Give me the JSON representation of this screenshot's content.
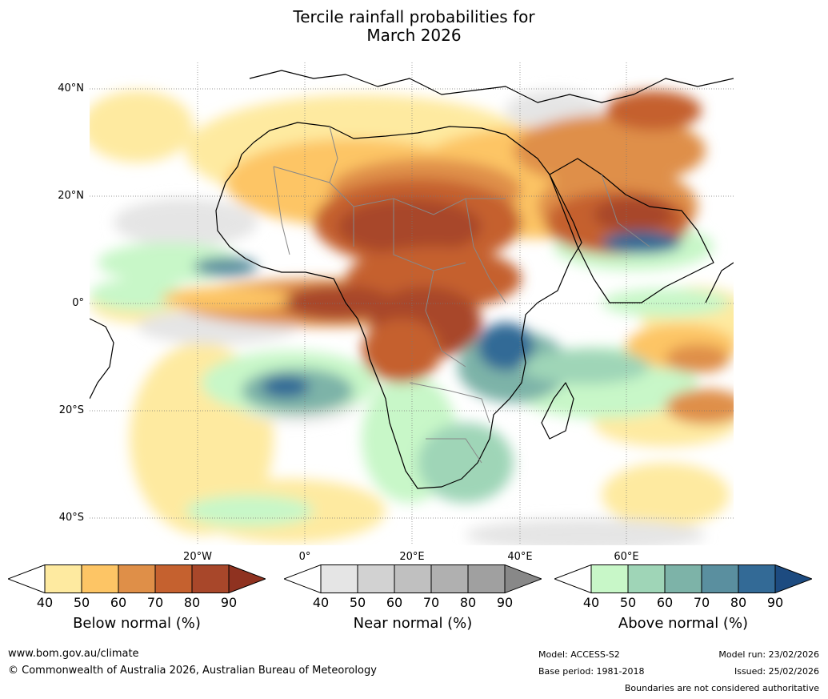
{
  "title_line1": "Tercile rainfall probabilities for",
  "title_line2": "March 2026",
  "lat_labels": [
    "40°N",
    "20°N",
    "0°",
    "20°S",
    "40°S"
  ],
  "lon_labels": [
    "20°W",
    "0°",
    "20°E",
    "40°E",
    "60°E"
  ],
  "colorbars": [
    {
      "label": "Below normal (%)",
      "ticks": [
        "40",
        "50",
        "60",
        "70",
        "80",
        "90"
      ],
      "colors": [
        "#ffffff",
        "#feeaa0",
        "#fdc565",
        "#df8f48",
        "#c5612f",
        "#a8472a",
        "#8f3220"
      ]
    },
    {
      "label": "Near normal (%)",
      "ticks": [
        "40",
        "50",
        "60",
        "70",
        "80",
        "90"
      ],
      "colors": [
        "#ffffff",
        "#e5e5e5",
        "#d2d2d2",
        "#c0c0c0",
        "#b0b0b0",
        "#a0a0a0",
        "#888888"
      ]
    },
    {
      "label": "Above normal (%)",
      "ticks": [
        "40",
        "50",
        "60",
        "70",
        "80",
        "90"
      ],
      "colors": [
        "#ffffff",
        "#c8f7c8",
        "#9fd5b7",
        "#7db3a8",
        "#5a8f9f",
        "#336a96",
        "#1d4b80"
      ]
    }
  ],
  "footer": {
    "website": "www.bom.gov.au/climate",
    "copyright": "© Commonwealth of Australia 2026, Australian Bureau of Meteorology",
    "model": "Model: ACCESS-S2",
    "base_period": "Base period: 1981-2018",
    "model_run": "Model run: 23/02/2026",
    "issued": "Issued: 25/02/2026",
    "disclaimer": "Boundaries are not considered authoritative"
  }
}
